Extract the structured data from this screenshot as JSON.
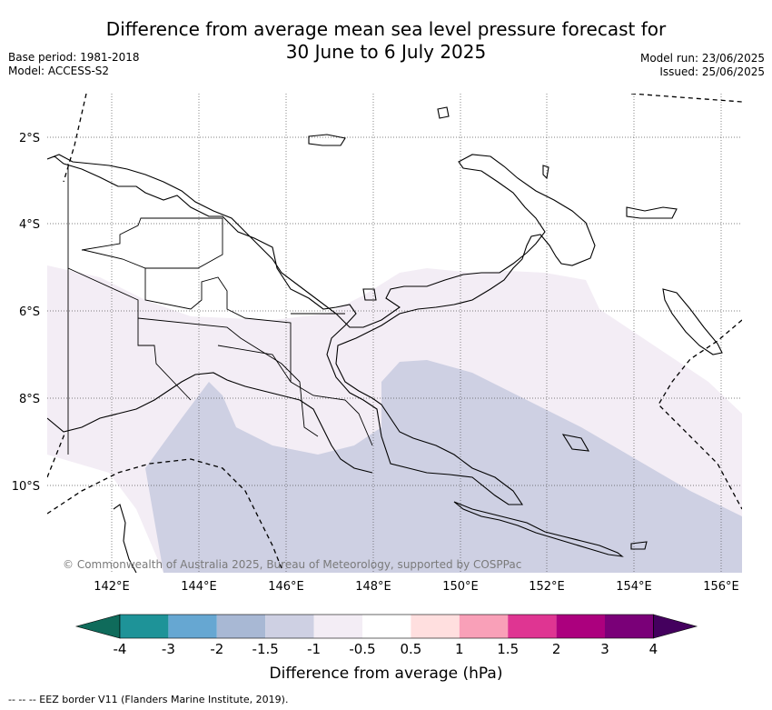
{
  "header": {
    "title_line1": "Difference from average mean sea level pressure forecast for",
    "title_line2": "30 June to 6 July 2025",
    "base_period": "Base period: 1981-2018",
    "model": "Model: ACCESS-S2",
    "model_run": "Model run: 23/06/2025",
    "issued": "Issued: 25/06/2025"
  },
  "map": {
    "lat_labels": [
      "2°S",
      "4°S",
      "6°S",
      "8°S",
      "10°S"
    ],
    "lon_labels": [
      "142°E",
      "144°E",
      "146°E",
      "148°E",
      "150°E",
      "152°E",
      "154°E",
      "156°E"
    ],
    "copyright": "© Commonwealth of Australia 2025, Bureau of Meteorology, supported by COSPPac",
    "shading_colors": {
      "minus_1_to_minus_0_5": "#f3edf5",
      "minus_1_5_to_minus_1": "#ced0e3"
    }
  },
  "colorbar": {
    "labels": [
      "-4",
      "-3",
      "-2",
      "-1.5",
      "-1",
      "-0.5",
      "0.5",
      "1",
      "1.5",
      "2",
      "3",
      "4"
    ],
    "colors": [
      "#0f6b5b",
      "#1e9398",
      "#66a7d2",
      "#a8b8d4",
      "#ced0e3",
      "#f3edf5",
      "#ffffff",
      "#ffdfdf",
      "#f9a0b8",
      "#df3592",
      "#ac007e",
      "#7a0078",
      "#44005e"
    ],
    "title": "Difference from average (hPa)"
  },
  "footer": {
    "eez_legend": "--  --  -- EEZ border V11 (Flanders Marine Institute, 2019)."
  }
}
